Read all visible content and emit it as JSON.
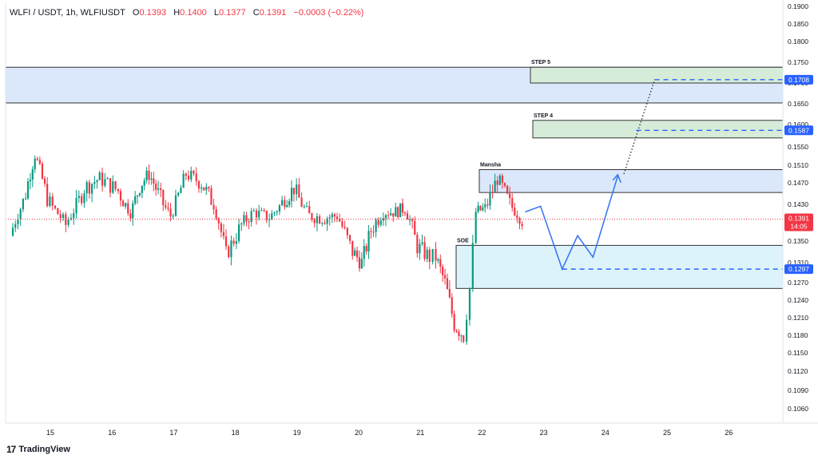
{
  "header": {
    "title": "WLFI / USDT, 1h, WLFIUSDT",
    "o_label": "O",
    "o_value": "0.1393",
    "h_label": "H",
    "h_value": "0.1400",
    "l_label": "L",
    "l_value": "0.1377",
    "c_label": "C",
    "c_value": "0.1391",
    "change": "−0.0003 (−0.22%)"
  },
  "branding": {
    "logo_text": "TradingView",
    "logo_icon": "tradingview-logo-icon"
  },
  "colors": {
    "up": "#089981",
    "down": "#f23645",
    "blue": "#2962ff",
    "path": "#3c78ef",
    "resistance_zone": "#dbe8fc",
    "support_zone": "#ddf3fb",
    "target_zone": "#d6ecd9",
    "current_price": "#f23645"
  },
  "chart_data": {
    "type": "candlestick",
    "title": "",
    "x_categories": [
      "15",
      "16",
      "17",
      "18",
      "19",
      "20",
      "21",
      "22",
      "23",
      "24",
      "25",
      "26"
    ],
    "y_ticks": [
      "0.1060",
      "0.1090",
      "0.1120",
      "0.1150",
      "0.1180",
      "0.1210",
      "0.1240",
      "0.1270",
      "0.1310",
      "0.1350",
      "0.1390",
      "0.1430",
      "0.1470",
      "0.1510",
      "0.1550",
      "0.1600",
      "0.1650",
      "0.1700",
      "0.1750",
      "0.1800",
      "0.1850",
      "0.1900"
    ],
    "y_tick_values": [
      0.106,
      0.109,
      0.112,
      0.115,
      0.118,
      0.121,
      0.124,
      0.127,
      0.131,
      0.135,
      0.139,
      0.143,
      0.147,
      0.151,
      0.155,
      0.16,
      0.165,
      0.17,
      0.175,
      0.18,
      0.185,
      0.19
    ],
    "ohlc_anchors": [
      [
        14.35,
        0.136
      ],
      [
        14.6,
        0.145
      ],
      [
        14.75,
        0.1535
      ],
      [
        14.95,
        0.144
      ],
      [
        15.25,
        0.138
      ],
      [
        15.55,
        0.146
      ],
      [
        15.8,
        0.148
      ],
      [
        16.1,
        0.1455
      ],
      [
        16.3,
        0.141
      ],
      [
        16.45,
        0.1465
      ],
      [
        16.6,
        0.149
      ],
      [
        16.75,
        0.145
      ],
      [
        16.95,
        0.14
      ],
      [
        17.2,
        0.149
      ],
      [
        17.45,
        0.147
      ],
      [
        17.65,
        0.143
      ],
      [
        17.85,
        0.1325
      ],
      [
        18.1,
        0.138
      ],
      [
        18.3,
        0.141
      ],
      [
        18.55,
        0.1395
      ],
      [
        18.8,
        0.144
      ],
      [
        18.95,
        0.146
      ],
      [
        19.2,
        0.14
      ],
      [
        19.45,
        0.1395
      ],
      [
        19.65,
        0.14
      ],
      [
        19.9,
        0.133
      ],
      [
        20.05,
        0.131
      ],
      [
        20.2,
        0.137
      ],
      [
        20.4,
        0.141
      ],
      [
        20.6,
        0.141
      ],
      [
        20.75,
        0.142
      ],
      [
        20.95,
        0.134
      ],
      [
        21.15,
        0.132
      ],
      [
        21.25,
        0.132
      ],
      [
        21.4,
        0.127
      ],
      [
        21.55,
        0.12
      ],
      [
        21.7,
        0.118
      ],
      [
        21.8,
        0.126
      ],
      [
        21.9,
        0.141
      ],
      [
        22.05,
        0.142
      ],
      [
        22.25,
        0.148
      ],
      [
        22.45,
        0.143
      ],
      [
        22.65,
        0.1391
      ]
    ],
    "zones": [
      {
        "name": "",
        "low": 0.1652,
        "high": 0.1738
      },
      {
        "name": "STEP 5",
        "low": 0.17,
        "high": 0.1738
      },
      {
        "name": "STEP 4",
        "low": 0.157,
        "high": 0.161
      },
      {
        "name": "Mansha",
        "low": 0.1452,
        "high": 0.15
      },
      {
        "name": "SOE",
        "low": 0.126,
        "high": 0.1342
      }
    ],
    "projection_path": [
      [
        22.7,
        0.141
      ],
      [
        22.95,
        0.1425
      ],
      [
        23.3,
        0.1297
      ],
      [
        23.55,
        0.136
      ],
      [
        23.8,
        0.132
      ],
      [
        24.2,
        0.1485
      ]
    ],
    "dotted_projection": [
      [
        24.3,
        0.149
      ],
      [
        24.8,
        0.1708
      ]
    ],
    "levels": [
      {
        "value": 0.1708,
        "label": "0.1708",
        "from": 24.8
      },
      {
        "value": 0.1587,
        "label": "0.1587",
        "from": 24.5
      },
      {
        "value": 0.1297,
        "label": "0.1297",
        "from": 23.3
      }
    ],
    "current_price": {
      "value": 0.1391,
      "label": "0.1391",
      "countdown": "14:05"
    }
  }
}
